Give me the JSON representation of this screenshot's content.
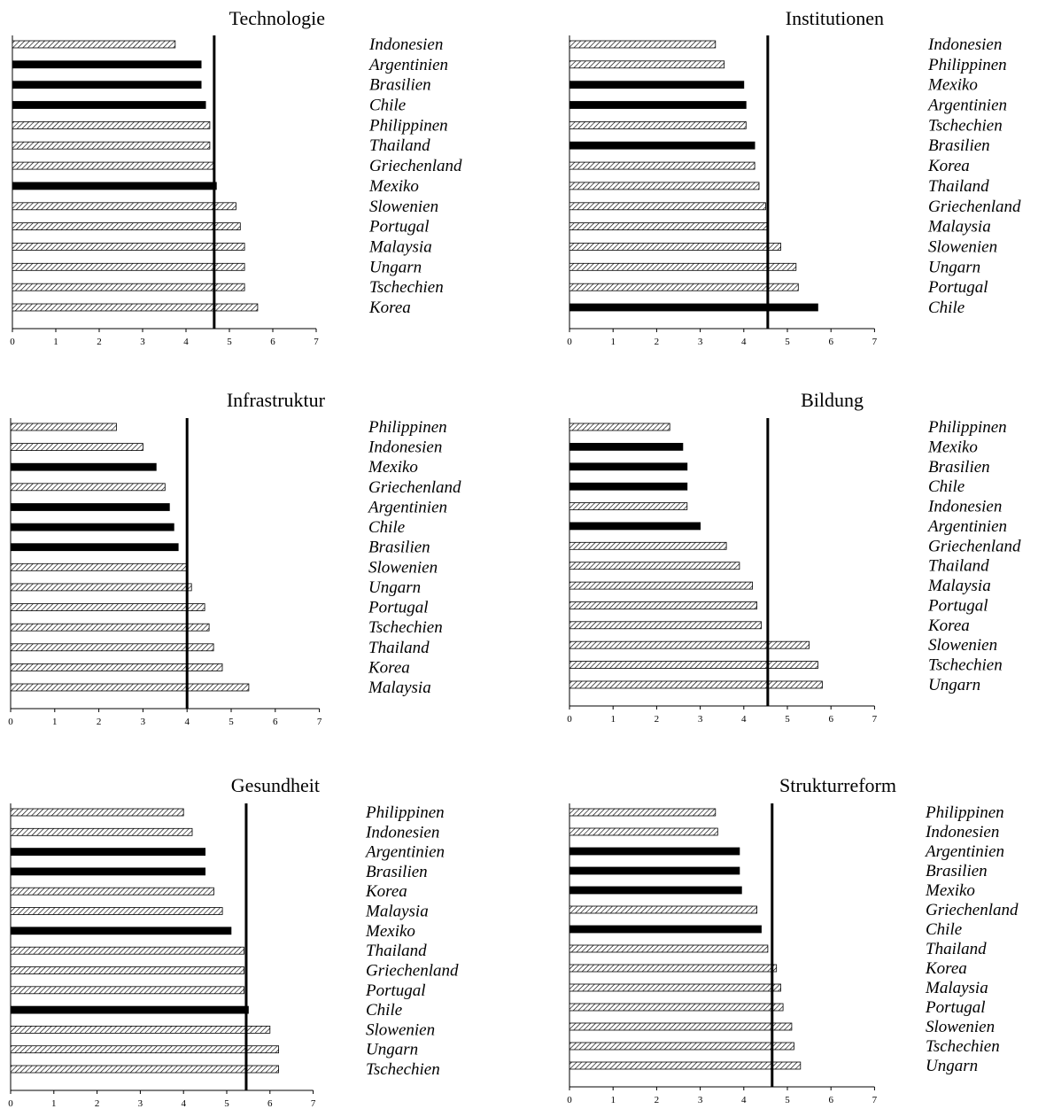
{
  "chart_data": [
    {
      "type": "bar",
      "title": "Technologie",
      "xlim": [
        0,
        7
      ],
      "xticks": [
        "0",
        "1",
        "2",
        "3",
        "4",
        "5",
        "6",
        "7"
      ],
      "reference_value": 4.65,
      "categories": [
        "Indonesien",
        "Argentinien",
        "Brasilien",
        "Chile",
        "Philippinen",
        "Thailand",
        "Griechenland",
        "Mexiko",
        "Slowenien",
        "Portugal",
        "Malaysia",
        "Ungarn",
        "Tschechien",
        "Korea"
      ],
      "values": [
        3.75,
        4.35,
        4.35,
        4.45,
        4.55,
        4.55,
        4.65,
        4.7,
        5.15,
        5.25,
        5.35,
        5.35,
        5.35,
        5.65
      ],
      "latin_america": [
        false,
        true,
        true,
        true,
        false,
        false,
        false,
        true,
        false,
        false,
        false,
        false,
        false,
        false
      ]
    },
    {
      "type": "bar",
      "title": "Institutionen",
      "xlim": [
        0,
        7
      ],
      "xticks": [
        "0",
        "1",
        "2",
        "3",
        "4",
        "5",
        "6",
        "7"
      ],
      "reference_value": 4.55,
      "categories": [
        "Indonesien",
        "Philippinen",
        "Mexiko",
        "Argentinien",
        "Tschechien",
        "Brasilien",
        "Korea",
        "Thailand",
        "Griechenland",
        "Malaysia",
        "Slowenien",
        "Ungarn",
        "Portugal",
        "Chile"
      ],
      "values": [
        3.35,
        3.55,
        4.0,
        4.05,
        4.05,
        4.25,
        4.25,
        4.35,
        4.5,
        4.55,
        4.85,
        5.2,
        5.25,
        5.7
      ],
      "latin_america": [
        false,
        false,
        true,
        true,
        false,
        true,
        false,
        false,
        false,
        false,
        false,
        false,
        false,
        true
      ]
    },
    {
      "type": "bar",
      "title": "Infrastruktur",
      "xlim": [
        0,
        7
      ],
      "xticks": [
        "0",
        "1",
        "2",
        "3",
        "4",
        "5",
        "6",
        "7"
      ],
      "reference_value": 4.0,
      "categories": [
        "Philippinen",
        "Indonesien",
        "Mexiko",
        "Griechenland",
        "Argentinien",
        "Chile",
        "Brasilien",
        "Slowenien",
        "Ungarn",
        "Portugal",
        "Tschechien",
        "Thailand",
        "Korea",
        "Malaysia"
      ],
      "values": [
        2.4,
        3.0,
        3.3,
        3.5,
        3.6,
        3.7,
        3.8,
        4.0,
        4.1,
        4.4,
        4.5,
        4.6,
        4.8,
        5.4
      ],
      "latin_america": [
        false,
        false,
        true,
        false,
        true,
        true,
        true,
        false,
        false,
        false,
        false,
        false,
        false,
        false
      ]
    },
    {
      "type": "bar",
      "title": "Bildung",
      "xlim": [
        0,
        7
      ],
      "xticks": [
        "0",
        "1",
        "2",
        "3",
        "4",
        "5",
        "6",
        "7"
      ],
      "reference_value": 4.55,
      "categories": [
        "Philippinen",
        "Mexiko",
        "Brasilien",
        "Chile",
        "Indonesien",
        "Argentinien",
        "Griechenland",
        "Thailand",
        "Malaysia",
        "Portugal",
        "Korea",
        "Slowenien",
        "Tschechien",
        "Ungarn"
      ],
      "values": [
        2.3,
        2.6,
        2.7,
        2.7,
        2.7,
        3.0,
        3.6,
        3.9,
        4.2,
        4.3,
        4.4,
        5.5,
        5.7,
        5.8
      ],
      "latin_america": [
        false,
        true,
        true,
        true,
        false,
        true,
        false,
        false,
        false,
        false,
        false,
        false,
        false,
        false
      ]
    },
    {
      "type": "bar",
      "title": "Gesundheit",
      "xlim": [
        0,
        7
      ],
      "xticks": [
        "0",
        "1",
        "2",
        "3",
        "4",
        "5",
        "6",
        "7"
      ],
      "reference_value": 5.45,
      "categories": [
        "Philippinen",
        "Indonesien",
        "Argentinien",
        "Brasilien",
        "Korea",
        "Malaysia",
        "Mexiko",
        "Thailand",
        "Griechenland",
        "Portugal",
        "Chile",
        "Slowenien",
        "Ungarn",
        "Tschechien"
      ],
      "values": [
        4.0,
        4.2,
        4.5,
        4.5,
        4.7,
        4.9,
        5.1,
        5.4,
        5.4,
        5.4,
        5.5,
        6.0,
        6.2,
        6.2
      ],
      "latin_america": [
        false,
        false,
        true,
        true,
        false,
        false,
        true,
        false,
        false,
        false,
        true,
        false,
        false,
        false
      ]
    },
    {
      "type": "bar",
      "title": "Strukturreform",
      "xlim": [
        0,
        7
      ],
      "xticks": [
        "0",
        "1",
        "2",
        "3",
        "4",
        "5",
        "6",
        "7"
      ],
      "reference_value": 4.65,
      "categories": [
        "Philippinen",
        "Indonesien",
        "Argentinien",
        "Brasilien",
        "Mexiko",
        "Griechenland",
        "Chile",
        "Thailand",
        "Korea",
        "Malaysia",
        "Portugal",
        "Slowenien",
        "Tschechien",
        "Ungarn"
      ],
      "values": [
        3.35,
        3.4,
        3.9,
        3.9,
        3.95,
        4.3,
        4.4,
        4.55,
        4.75,
        4.85,
        4.9,
        5.1,
        5.15,
        5.3
      ],
      "latin_america": [
        false,
        false,
        true,
        true,
        true,
        false,
        true,
        false,
        false,
        false,
        false,
        false,
        false,
        false
      ]
    }
  ]
}
